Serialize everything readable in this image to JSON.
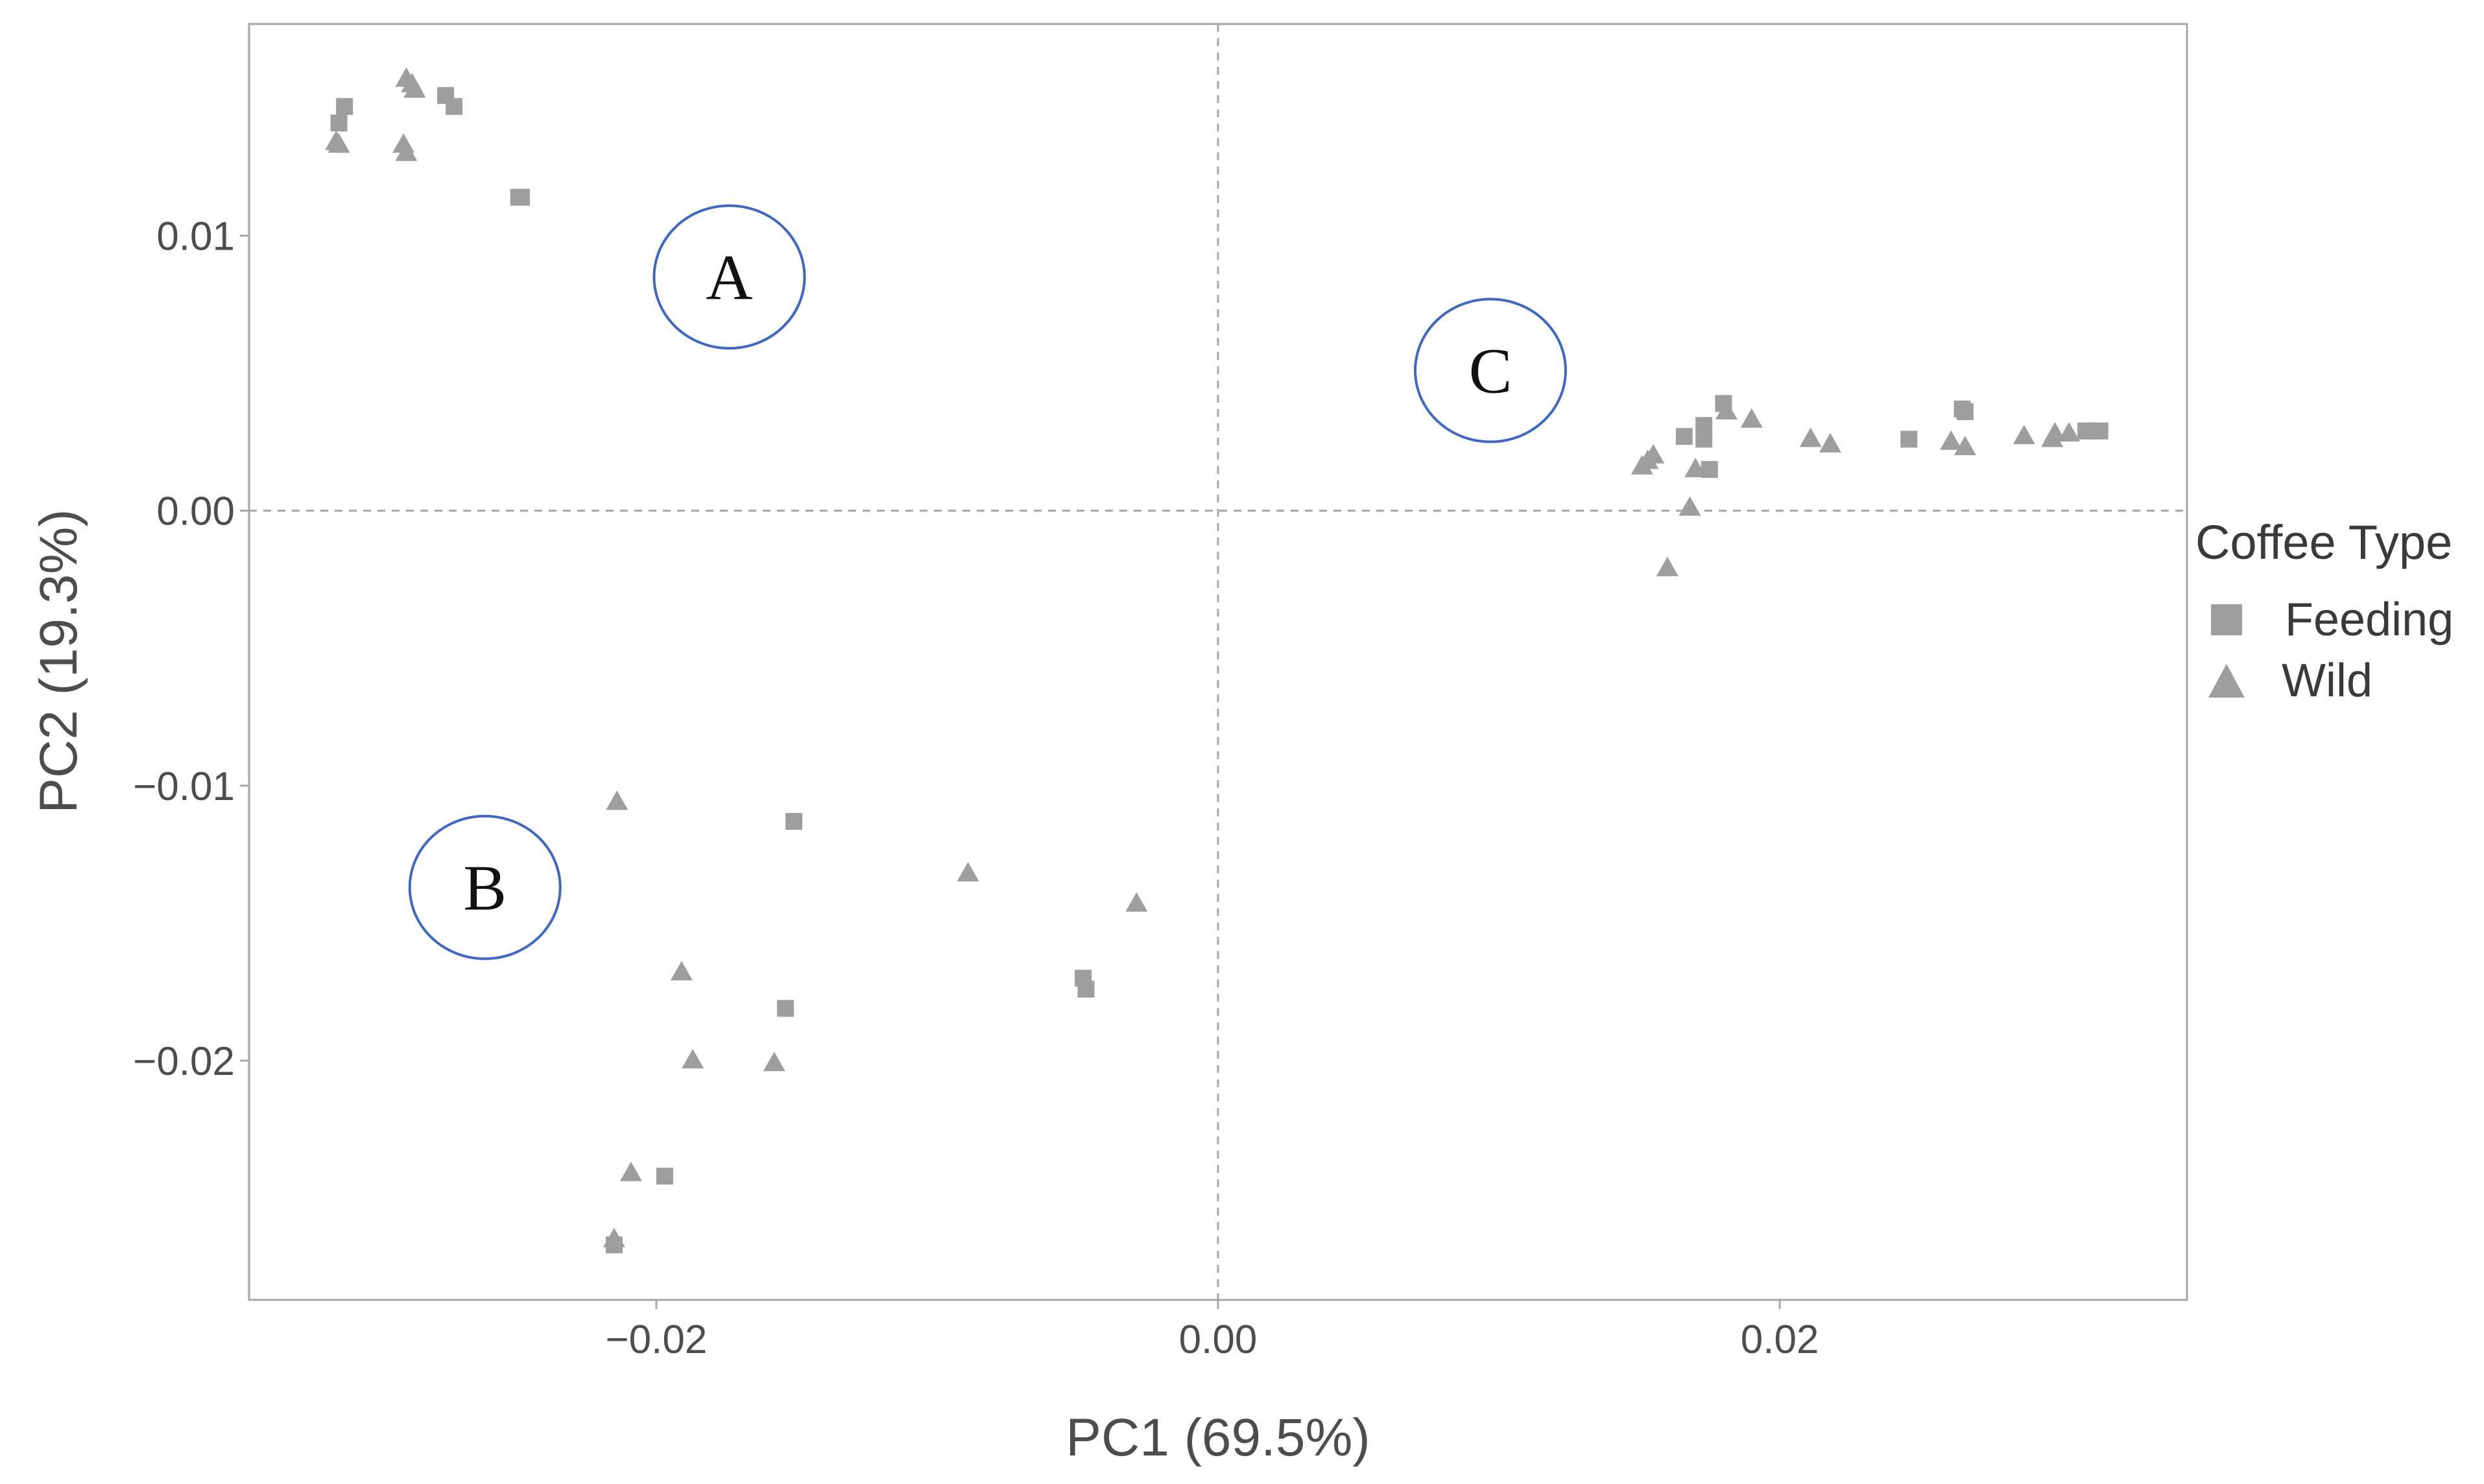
{
  "chart_data": {
    "type": "scatter",
    "title": "",
    "xlabel": "PC1 (69.5%)",
    "ylabel": "PC2 (19.3%)",
    "xlim": [
      -0.0345,
      0.0345
    ],
    "ylim": [
      -0.0287,
      0.0177
    ],
    "xticks": [
      -0.02,
      0.0,
      0.02
    ],
    "xtick_labels": [
      "−0.02",
      "0.00",
      "0.02"
    ],
    "yticks": [
      0.01,
      0.0,
      -0.01,
      -0.02
    ],
    "ytick_labels": [
      "0.01",
      "0.00",
      "−0.01",
      "−0.02"
    ],
    "grid": false,
    "reference_lines": {
      "x": 0,
      "y": 0
    },
    "colors": {
      "points": "#9e9e9e",
      "frame": "#a6a6a6",
      "ref": "#a6a6a6",
      "circle": "#3f68c4"
    },
    "legend": {
      "title": "Coffee Type",
      "position": "right",
      "entries": [
        {
          "label": "Feeding",
          "shape": "square"
        },
        {
          "label": "Wild",
          "shape": "triangle"
        }
      ]
    },
    "annotations": [
      {
        "label": "A",
        "x": -0.0174,
        "y": 0.0085
      },
      {
        "label": "B",
        "x": -0.0261,
        "y": -0.0137
      },
      {
        "label": "C",
        "x": 0.0097,
        "y": 0.0051
      }
    ],
    "series": [
      {
        "name": "Feeding",
        "shape": "square",
        "points": [
          [
            -0.0313,
            0.0141
          ],
          [
            -0.0311,
            0.0147
          ],
          [
            -0.0275,
            0.0151
          ],
          [
            -0.0272,
            0.0147
          ],
          [
            -0.0249,
            0.0114
          ],
          [
            -0.0248,
            0.0114
          ],
          [
            -0.0151,
            -0.0113
          ],
          [
            -0.0154,
            -0.0181
          ],
          [
            -0.0197,
            -0.0242
          ],
          [
            -0.0215,
            -0.0267
          ],
          [
            -0.0048,
            -0.017
          ],
          [
            -0.0047,
            -0.0174
          ],
          [
            0.0166,
            0.0027
          ],
          [
            0.0173,
            0.0031
          ],
          [
            0.0173,
            0.0026
          ],
          [
            0.018,
            0.0039
          ],
          [
            0.0175,
            0.0015
          ],
          [
            0.0246,
            0.0026
          ],
          [
            0.0265,
            0.0037
          ],
          [
            0.0266,
            0.0036
          ],
          [
            0.0309,
            0.0029
          ],
          [
            0.0311,
            0.0029
          ],
          [
            0.0314,
            0.0029
          ]
        ]
      },
      {
        "name": "Wild",
        "shape": "triangle",
        "points": [
          [
            -0.0314,
            0.0134
          ],
          [
            -0.0313,
            0.0133
          ],
          [
            -0.0289,
            0.0157
          ],
          [
            -0.0287,
            0.0155
          ],
          [
            -0.0286,
            0.0153
          ],
          [
            -0.029,
            0.0133
          ],
          [
            -0.0289,
            0.013
          ],
          [
            -0.0214,
            -0.0106
          ],
          [
            -0.0191,
            -0.0168
          ],
          [
            -0.0187,
            -0.02
          ],
          [
            -0.0158,
            -0.0201
          ],
          [
            -0.0209,
            -0.0241
          ],
          [
            -0.0215,
            -0.0265
          ],
          [
            -0.0089,
            -0.0132
          ],
          [
            -0.0029,
            -0.0143
          ],
          [
            0.0151,
            0.0016
          ],
          [
            0.0153,
            0.0018
          ],
          [
            0.0155,
            0.002
          ],
          [
            0.017,
            0.0015
          ],
          [
            0.0168,
            0.0001
          ],
          [
            0.016,
            -0.0021
          ],
          [
            0.0181,
            0.0036
          ],
          [
            0.019,
            0.0033
          ],
          [
            0.0211,
            0.0026
          ],
          [
            0.0218,
            0.0024
          ],
          [
            0.0261,
            0.0025
          ],
          [
            0.0266,
            0.0023
          ],
          [
            0.0287,
            0.0027
          ],
          [
            0.0297,
            0.0026
          ],
          [
            0.0298,
            0.0028
          ],
          [
            0.0303,
            0.0028
          ]
        ]
      }
    ]
  }
}
